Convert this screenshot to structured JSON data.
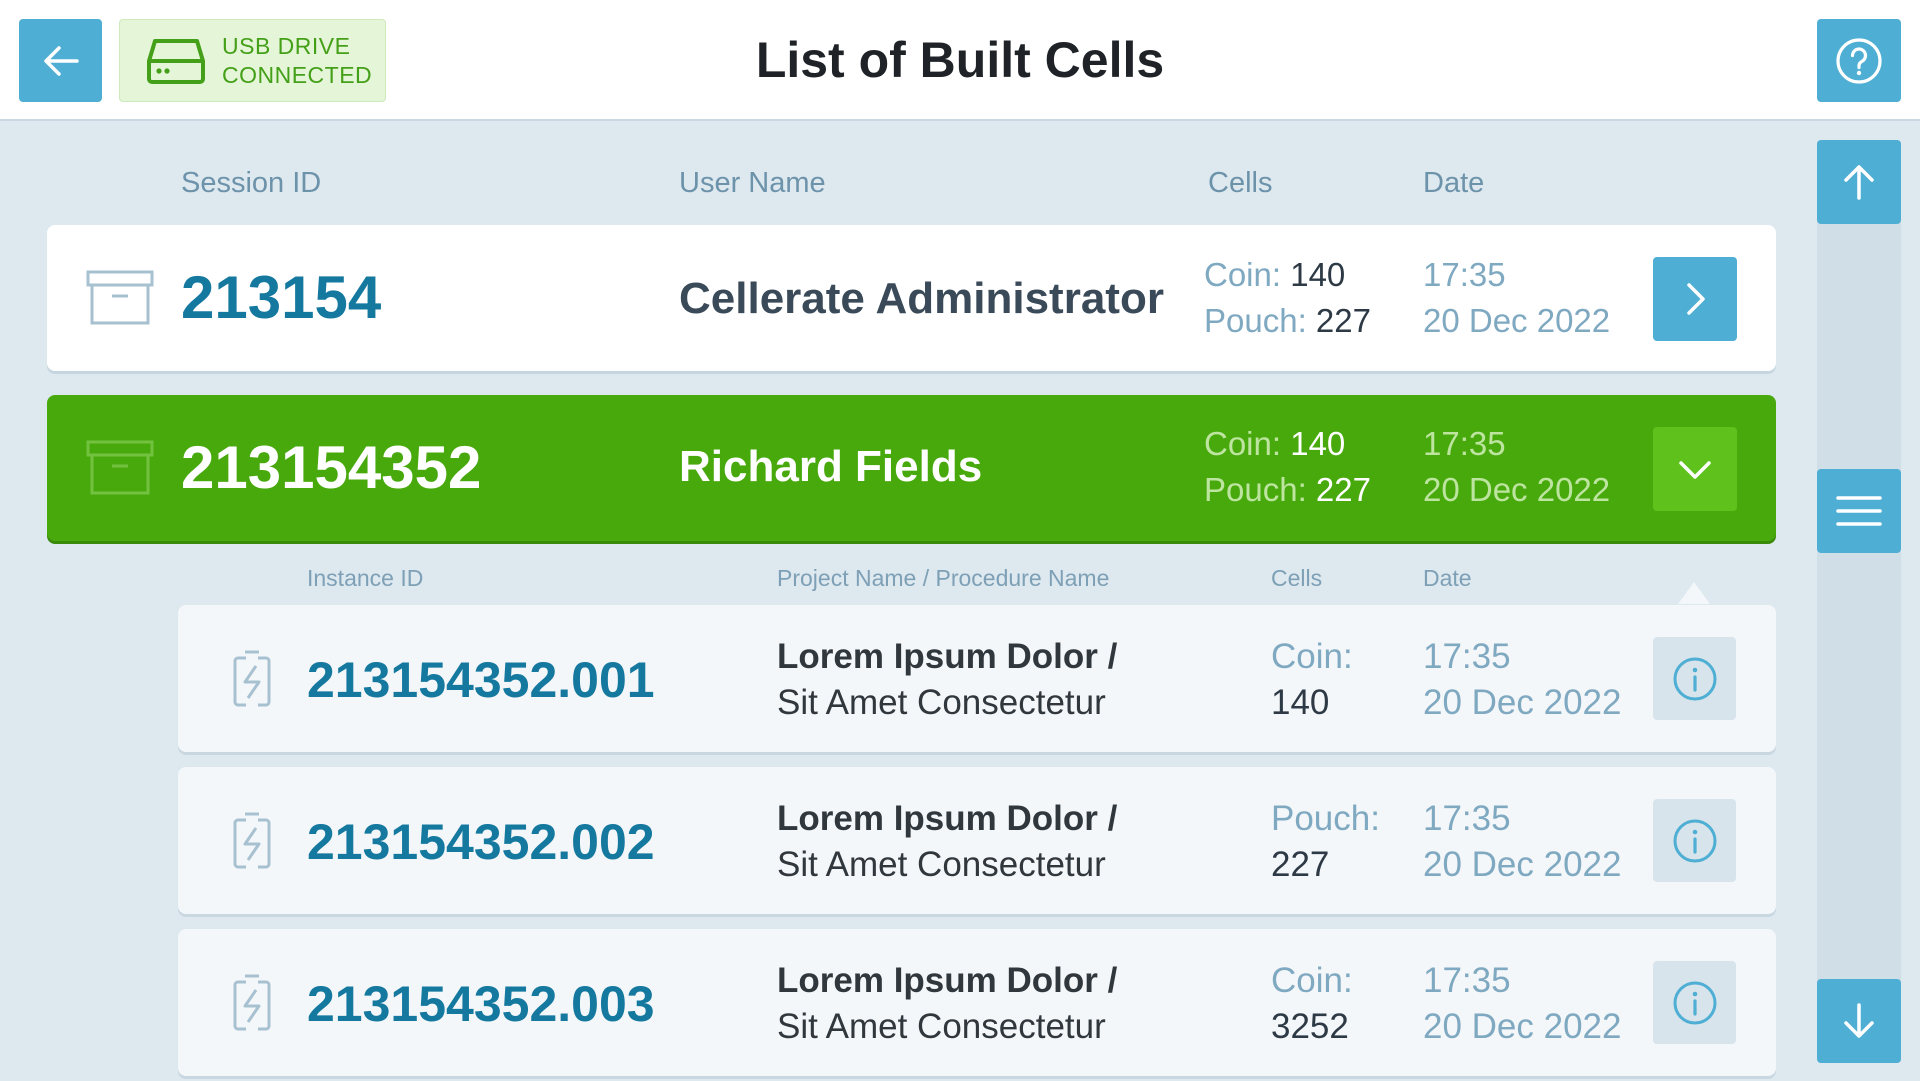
{
  "header": {
    "title": "List of Built Cells",
    "usb_line1": "USB DRIVE",
    "usb_line2": "CONNECTED"
  },
  "icons": {
    "back": "arrow-left-icon",
    "usb": "usb-drive-icon",
    "help": "help-circle-icon",
    "scroll_up": "arrow-up-icon",
    "scroll_thumb": "hamburger-icon",
    "scroll_down": "arrow-down-icon",
    "session": "archive-box-icon",
    "instance": "battery-charging-icon",
    "info": "info-circle-icon"
  },
  "colors": {
    "accent_blue": "#4eaed3",
    "selected_green": "#48a90c",
    "usb_green": "#45a019",
    "id_blue": "#14789f",
    "label_muted": "#7fa8c1"
  },
  "columns": {
    "session_id": "Session ID",
    "user_name": "User Name",
    "cells": "Cells",
    "date": "Date"
  },
  "sub_columns": {
    "instance_id": "Instance ID",
    "project": "Project Name / Procedure Name",
    "cells": "Cells",
    "date": "Date"
  },
  "sessions": [
    {
      "id": "213154",
      "user": "Cellerate Administrator",
      "coin_label": "Coin:",
      "coin_value": "140",
      "pouch_label": "Pouch:",
      "pouch_value": "227",
      "time": "17:35",
      "date": "20 Dec 2022",
      "expanded": false
    },
    {
      "id": "213154352",
      "user": "Richard Fields",
      "coin_label": "Coin:",
      "coin_value": "140",
      "pouch_label": "Pouch:",
      "pouch_value": "227",
      "time": "17:35",
      "date": "20 Dec 2022",
      "expanded": true
    }
  ],
  "instances": [
    {
      "id": "213154352.001",
      "project": "Lorem Ipsum Dolor /",
      "procedure": "Sit Amet Consectetur",
      "cell_label": "Coin:",
      "cell_value": "140",
      "time": "17:35",
      "date": "20 Dec 2022"
    },
    {
      "id": "213154352.002",
      "project": "Lorem Ipsum Dolor /",
      "procedure": "Sit Amet Consectetur",
      "cell_label": "Pouch:",
      "cell_value": "227",
      "time": "17:35",
      "date": "20 Dec 2022"
    },
    {
      "id": "213154352.003",
      "project": "Lorem Ipsum Dolor /",
      "procedure": "Sit Amet Consectetur",
      "cell_label": "Coin:",
      "cell_value": "3252",
      "time": "17:35",
      "date": "20 Dec 2022"
    }
  ]
}
